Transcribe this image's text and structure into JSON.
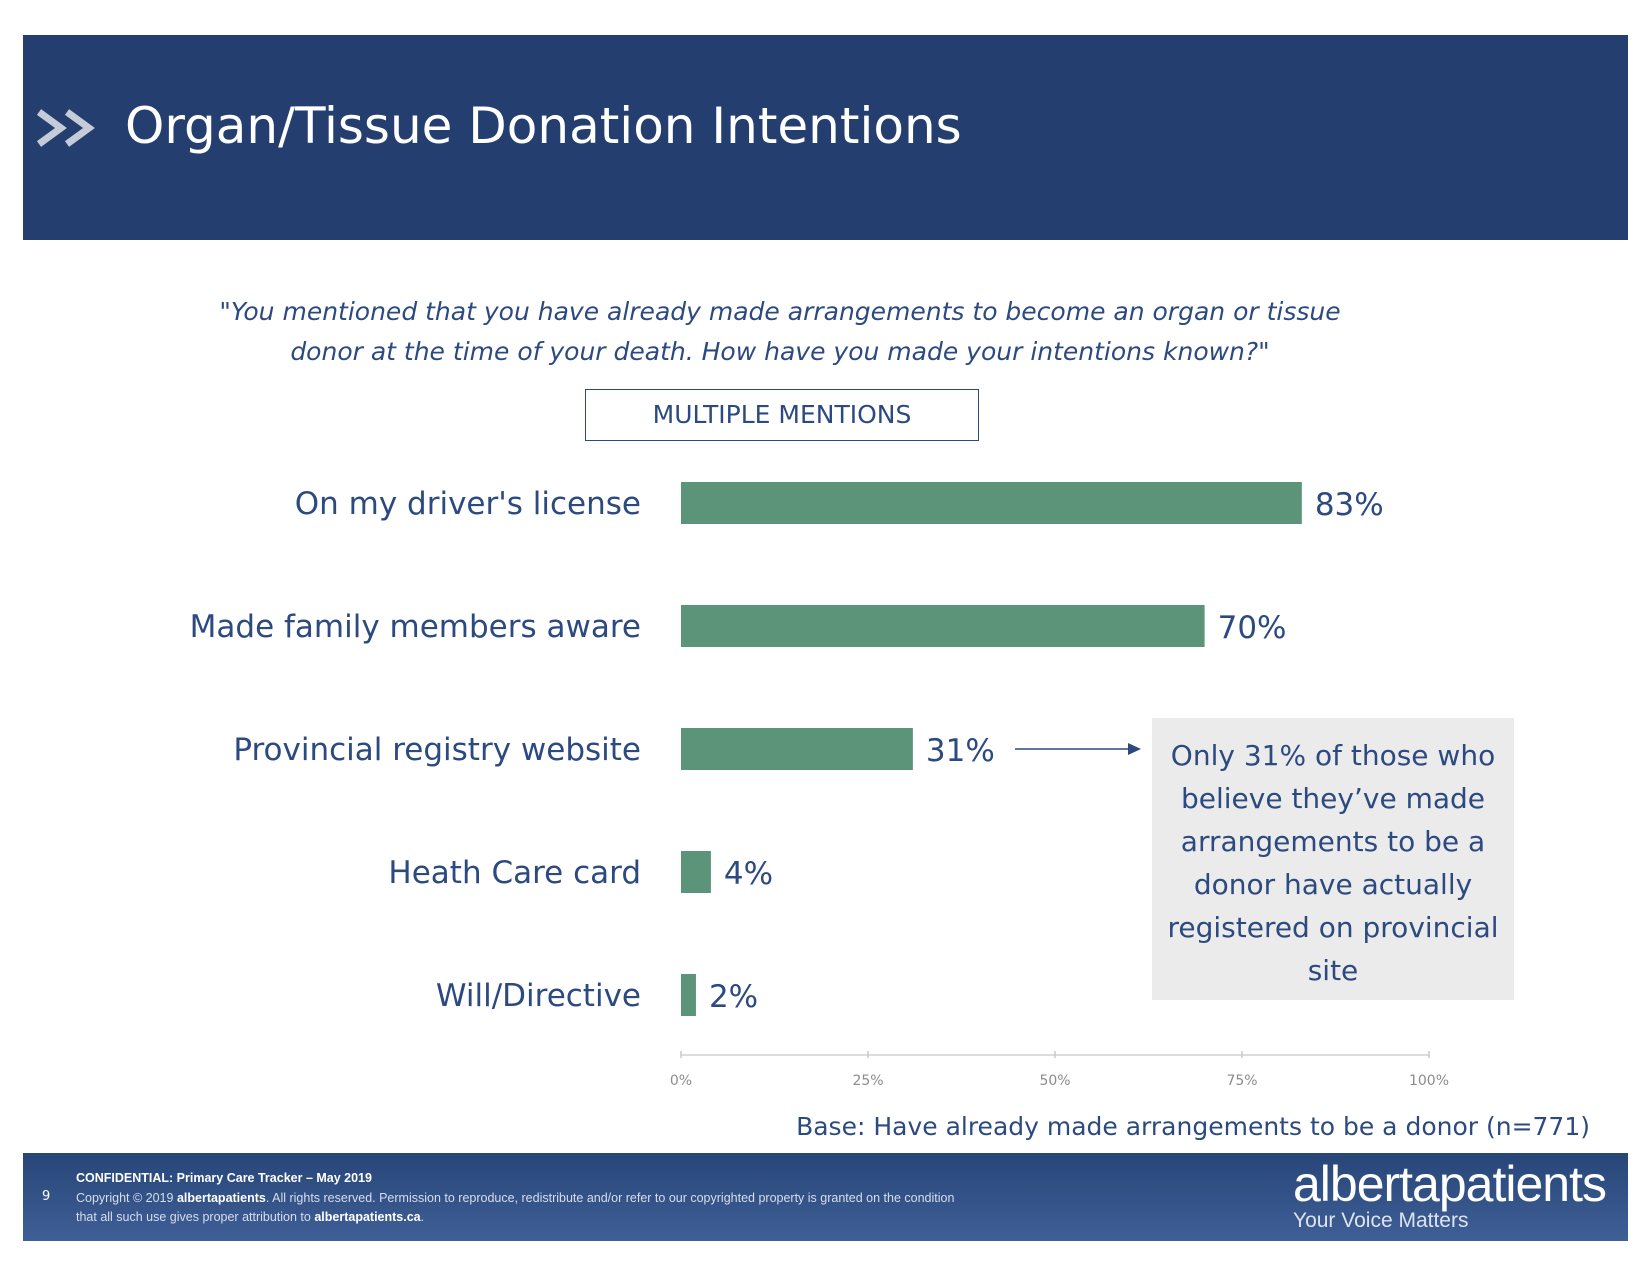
{
  "header": {
    "title": "Organ/Tissue Donation Intentions",
    "icon": "double-chevron-icon",
    "background": "#243e70"
  },
  "question": "\"You mentioned that you have already made arrangements to become an organ or tissue donor at the time of your death. How have you made your intentions known?\"",
  "mentions_label": "MULTIPLE MENTIONS",
  "chart_data": {
    "type": "bar",
    "orientation": "horizontal",
    "categories": [
      "On my driver's license",
      "Made family members aware",
      "Provincial registry website",
      "Heath Care card",
      "Will/Directive"
    ],
    "values": [
      83,
      70,
      31,
      4,
      2
    ],
    "value_labels": [
      "83%",
      "70%",
      "31%",
      "4%",
      "2%"
    ],
    "xlim": [
      0,
      100
    ],
    "ticks": [
      "0%",
      "25%",
      "50%",
      "75%",
      "100%"
    ],
    "bar_color": "#5c9479",
    "grid": false
  },
  "callout": "Only 31% of those who believe they’ve made arrangements to be a donor have actually registered on provincial site",
  "base_note": "Base: Have already made arrangements to be a donor (n=771)",
  "footer": {
    "page_number": "9",
    "confidential": "CONFIDENTIAL: Primary Care Tracker – May 2019",
    "copyright_pre": "Copyright © 2019 ",
    "copyright_brand": "albertapatients",
    "copyright_mid": ". All rights reserved. Permission to reproduce, redistribute and/or refer to our copyrighted property is granted on the condition that all such use gives proper attribution to ",
    "copyright_site": "albertapatients.ca",
    "copyright_end": ".",
    "brand_name": "albertapatients",
    "brand_tagline": "Your Voice Matters"
  }
}
